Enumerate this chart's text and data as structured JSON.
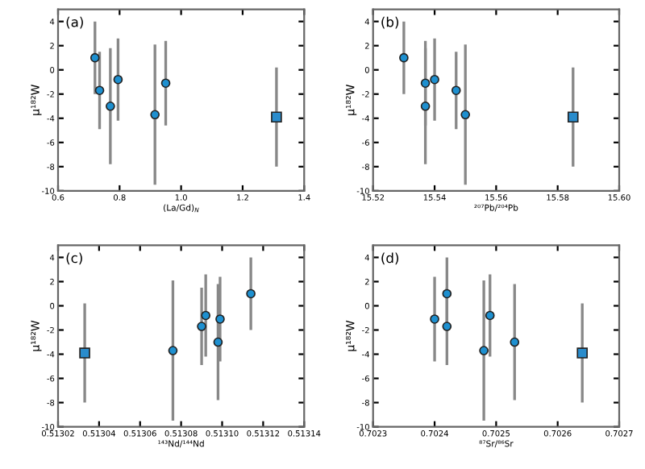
{
  "chart_data": [
    {
      "type": "scatter",
      "title": "(a)",
      "xlabel": "(La/Gd)$_{N}$",
      "ylabel": "μ¹⁸²W",
      "xlim": [
        0.6,
        1.4
      ],
      "xticks": [
        0.6,
        0.8,
        {
          "value": 1.0,
          "label": "1.0"
        },
        1.2,
        1.4
      ],
      "ylim": [
        -10,
        5
      ],
      "yticks": [
        -10,
        -8,
        -6,
        -4,
        -2,
        0,
        2,
        4
      ],
      "grid": false,
      "legend": false,
      "series": [
        {
          "color": "#1e90d0",
          "marker": "circle",
          "x": [
            0.72,
            0.735,
            0.77,
            0.795,
            0.915,
            0.95
          ],
          "values": [
            1.0,
            -1.7,
            -3.0,
            -0.8,
            -3.7,
            -1.1
          ],
          "errors": [
            3.0,
            3.2,
            4.8,
            3.4,
            5.8,
            3.5
          ]
        },
        {
          "color": "#2a8ccc",
          "marker": "square",
          "x": [
            1.31
          ],
          "values": [
            -3.9
          ],
          "errors": [
            4.1
          ]
        }
      ]
    },
    {
      "type": "scatter",
      "title": "(b)",
      "xlabel": "²⁰⁷Pb/²⁰⁴Pb",
      "ylabel": "μ¹⁸²W",
      "xlim": [
        15.52,
        15.6
      ],
      "xticks": [
        15.52,
        15.54,
        15.56,
        15.58,
        {
          "value": 15.6,
          "label": "15.60"
        }
      ],
      "ylim": [
        -10,
        5
      ],
      "yticks": [
        -10,
        -8,
        -6,
        -4,
        -2,
        0,
        2,
        4
      ],
      "grid": false,
      "legend": false,
      "series": [
        {
          "color": "#1e90d0",
          "marker": "circle",
          "x": [
            15.53,
            15.537,
            15.537,
            15.54,
            15.547,
            15.55
          ],
          "values": [
            1.0,
            -1.1,
            -3.0,
            -0.8,
            -1.7,
            -3.7
          ],
          "errors": [
            3.0,
            3.5,
            4.8,
            3.4,
            3.2,
            5.8
          ]
        },
        {
          "color": "#2a8ccc",
          "marker": "square",
          "x": [
            15.585
          ],
          "values": [
            -3.9
          ],
          "errors": [
            4.1
          ]
        }
      ]
    },
    {
      "type": "scatter",
      "title": "(c)",
      "xlabel": "¹⁴³Nd/¹⁴⁴Nd",
      "ylabel": "μ¹⁸²W",
      "xlim": [
        0.51302,
        0.51314
      ],
      "xticks": [
        0.51302,
        0.51304,
        0.51306,
        0.51308,
        {
          "value": 0.5131,
          "label": "0.51310"
        },
        0.51312,
        0.51314
      ],
      "ylim": [
        -10,
        5
      ],
      "yticks": [
        -10,
        -8,
        -6,
        -4,
        -2,
        0,
        2,
        4
      ],
      "grid": false,
      "legend": false,
      "series": [
        {
          "color": "#1e90d0",
          "marker": "circle",
          "x": [
            0.513076,
            0.51309,
            0.513092,
            0.513098,
            0.513099,
            0.513114
          ],
          "values": [
            -3.7,
            -1.7,
            -0.8,
            -3.0,
            -1.1,
            1.0
          ],
          "errors": [
            5.8,
            3.2,
            3.4,
            4.8,
            3.5,
            3.0
          ]
        },
        {
          "color": "#2a8ccc",
          "marker": "square",
          "x": [
            0.513033
          ],
          "values": [
            -3.9
          ],
          "errors": [
            4.1
          ]
        }
      ]
    },
    {
      "type": "scatter",
      "title": "(d)",
      "xlabel": "⁸⁷Sr/⁸⁶Sr",
      "ylabel": "μ¹⁸²W",
      "xlim": [
        0.7023,
        0.7027
      ],
      "xticks": [
        0.7023,
        0.7024,
        0.7025,
        0.7026,
        0.7027
      ],
      "ylim": [
        -10,
        5
      ],
      "yticks": [
        -10,
        -8,
        -6,
        -4,
        -2,
        0,
        2,
        4
      ],
      "grid": false,
      "legend": false,
      "series": [
        {
          "color": "#1e90d0",
          "marker": "circle",
          "x": [
            0.7024,
            0.70242,
            0.70242,
            0.70248,
            0.70249,
            0.70253
          ],
          "values": [
            -1.1,
            1.0,
            -1.7,
            -3.7,
            -0.8,
            -3.0
          ],
          "errors": [
            3.5,
            3.0,
            3.2,
            5.8,
            3.4,
            4.8
          ]
        },
        {
          "color": "#2a8ccc",
          "marker": "square",
          "x": [
            0.70264
          ],
          "values": [
            -3.9
          ],
          "errors": [
            4.1
          ]
        }
      ]
    }
  ]
}
